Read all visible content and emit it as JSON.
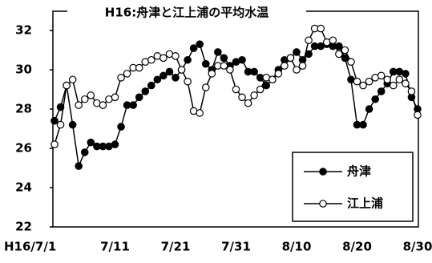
{
  "chart_data": {
    "type": "line",
    "title": "H16:舟津と江上浦の平均水温",
    "categories": [
      "H16/7/1",
      null,
      null,
      null,
      null,
      null,
      null,
      null,
      null,
      null,
      "7/11",
      null,
      null,
      null,
      null,
      null,
      null,
      null,
      null,
      null,
      "7/21",
      null,
      null,
      null,
      null,
      null,
      null,
      null,
      null,
      null,
      "7/31",
      null,
      null,
      null,
      null,
      null,
      null,
      null,
      null,
      null,
      "8/10",
      null,
      null,
      null,
      null,
      null,
      null,
      null,
      null,
      null,
      "8/20",
      null,
      null,
      null,
      null,
      null,
      null,
      null,
      null,
      null,
      "8/30"
    ],
    "series": [
      {
        "name": "舟津",
        "color": "#000000",
        "marker": "filled",
        "values": [
          27.4,
          28.1,
          29.2,
          27.2,
          25.1,
          25.8,
          26.3,
          26.1,
          26.1,
          26.1,
          26.2,
          27.1,
          28.2,
          28.2,
          28.6,
          28.9,
          29.2,
          29.5,
          29.7,
          29.9,
          29.6,
          30.0,
          30.5,
          31.1,
          31.3,
          30.3,
          30.0,
          30.9,
          30.6,
          30.2,
          30.4,
          30.5,
          29.9,
          29.9,
          29.6,
          29.2,
          29.5,
          30.0,
          30.5,
          30.6,
          30.9,
          30.5,
          30.8,
          31.2,
          31.2,
          31.3,
          31.2,
          31.2,
          30.6,
          29.5,
          27.2,
          27.2,
          28.0,
          28.5,
          28.9,
          29.3,
          29.9,
          29.9,
          29.8,
          28.6,
          28.0
        ]
      },
      {
        "name": "江上浦",
        "color": "#000000",
        "marker": "open",
        "values": [
          26.2,
          27.2,
          29.2,
          29.5,
          28.2,
          28.5,
          28.7,
          28.3,
          28.2,
          28.5,
          28.6,
          29.6,
          29.8,
          30.1,
          30.1,
          30.4,
          30.5,
          30.7,
          30.6,
          30.8,
          30.7,
          30.0,
          29.4,
          27.9,
          27.8,
          29.1,
          29.8,
          30.2,
          30.2,
          30.0,
          29.0,
          28.6,
          28.3,
          28.7,
          29.0,
          29.6,
          29.5,
          29.8,
          30.2,
          30.6,
          30.0,
          30.2,
          31.5,
          32.1,
          32.1,
          31.4,
          31.5,
          30.8,
          31.0,
          30.4,
          29.4,
          29.2,
          29.4,
          29.6,
          29.7,
          29.5,
          29.2,
          29.5,
          29.3,
          28.9,
          27.7
        ]
      }
    ],
    "ylim": [
      22,
      32
    ],
    "yticks": [
      22,
      24,
      26,
      28,
      30,
      32
    ],
    "legend": "lower right"
  }
}
